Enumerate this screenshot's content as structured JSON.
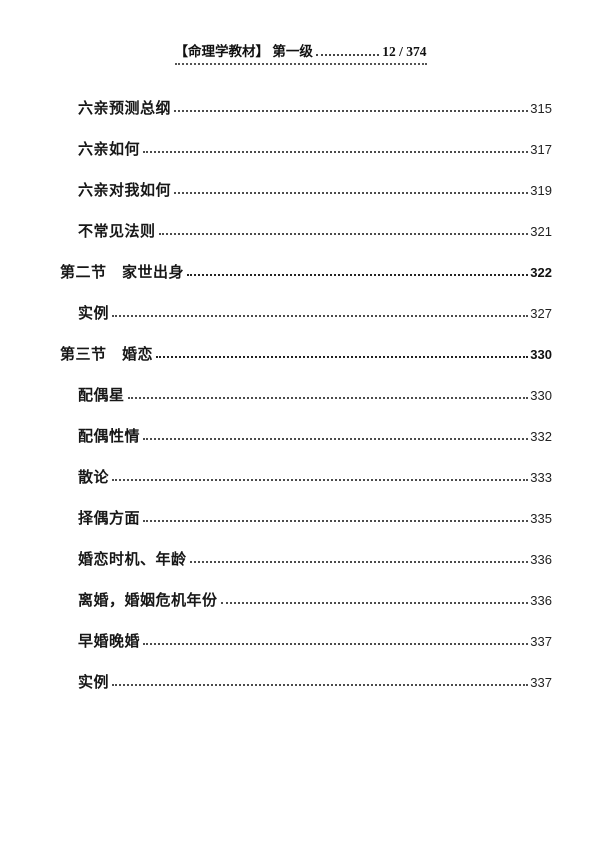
{
  "header": {
    "title": "【命理学教材】 第一级",
    "page_indicator": "12 / 374"
  },
  "toc": {
    "entries": [
      {
        "label": "六亲预测总纲",
        "page": "315",
        "level": "sub"
      },
      {
        "label": "六亲如何",
        "page": "317",
        "level": "sub"
      },
      {
        "label": "六亲对我如何",
        "page": "319",
        "level": "sub"
      },
      {
        "label": "不常见法则",
        "page": "321",
        "level": "sub"
      },
      {
        "label": "第二节　家世出身",
        "page": "322",
        "level": "section"
      },
      {
        "label": "实例",
        "page": "327",
        "level": "sub"
      },
      {
        "label": "第三节　婚恋",
        "page": "330",
        "level": "section"
      },
      {
        "label": "配偶星",
        "page": "330",
        "level": "sub"
      },
      {
        "label": "配偶性情",
        "page": "332",
        "level": "sub"
      },
      {
        "label": "散论",
        "page": "333",
        "level": "sub"
      },
      {
        "label": "择偶方面",
        "page": "335",
        "level": "sub"
      },
      {
        "label": "婚恋时机、年龄",
        "page": "336",
        "level": "sub"
      },
      {
        "label": "离婚，婚姻危机年份",
        "page": "336",
        "level": "sub"
      },
      {
        "label": "早婚晚婚",
        "page": "337",
        "level": "sub"
      },
      {
        "label": "实例",
        "page": "337",
        "level": "sub"
      }
    ]
  }
}
